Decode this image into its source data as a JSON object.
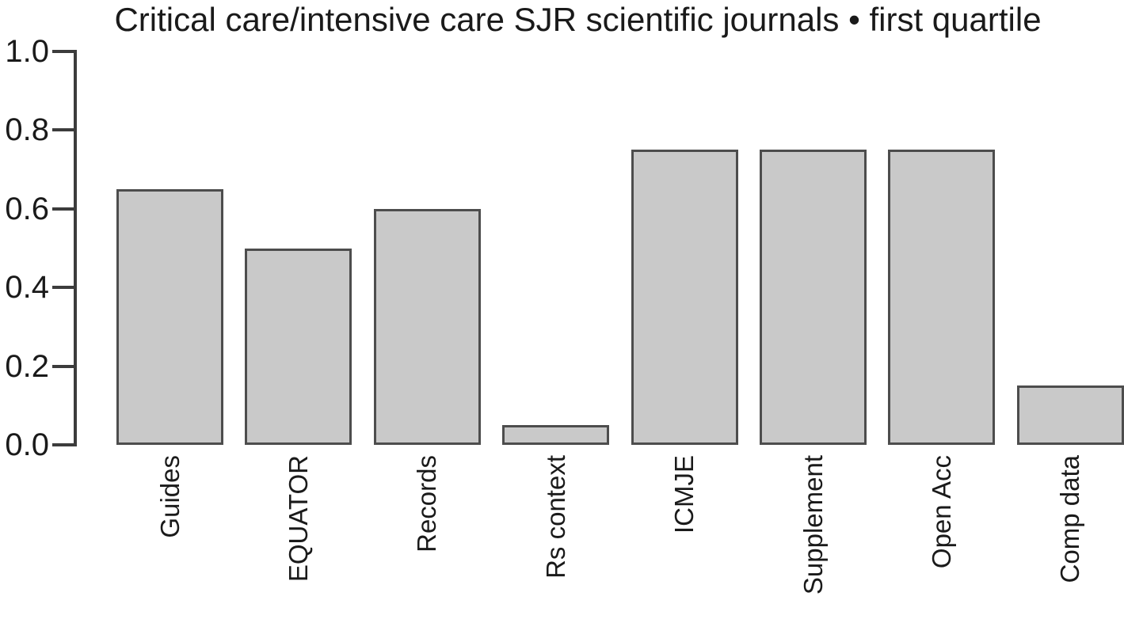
{
  "figure": {
    "background_color": "#ffffff",
    "text_color": "#1a1a1a",
    "axis_color": "#3c3c3c"
  },
  "chart_data": {
    "type": "bar",
    "title": "Critical care/intensive care SJR scientific journals • first quartile",
    "categories": [
      "Guides",
      "EQUATOR",
      "Records",
      "Rs context",
      "ICMJE",
      "Supplement",
      "Open Acc",
      "Comp data"
    ],
    "values": [
      0.65,
      0.5,
      0.6,
      0.05,
      0.75,
      0.75,
      0.75,
      0.15
    ],
    "xlabel": "",
    "ylabel": "",
    "ylim": [
      0.0,
      1.0
    ],
    "ytick_labels": [
      "0.0",
      "0.2",
      "0.4",
      "0.6",
      "0.8",
      "1.0"
    ],
    "grid": false,
    "legend": null,
    "x_label_rotation_deg": 90,
    "bar_fill_color": "#c9c9c9",
    "bar_border_color": "#4d4d4d"
  }
}
